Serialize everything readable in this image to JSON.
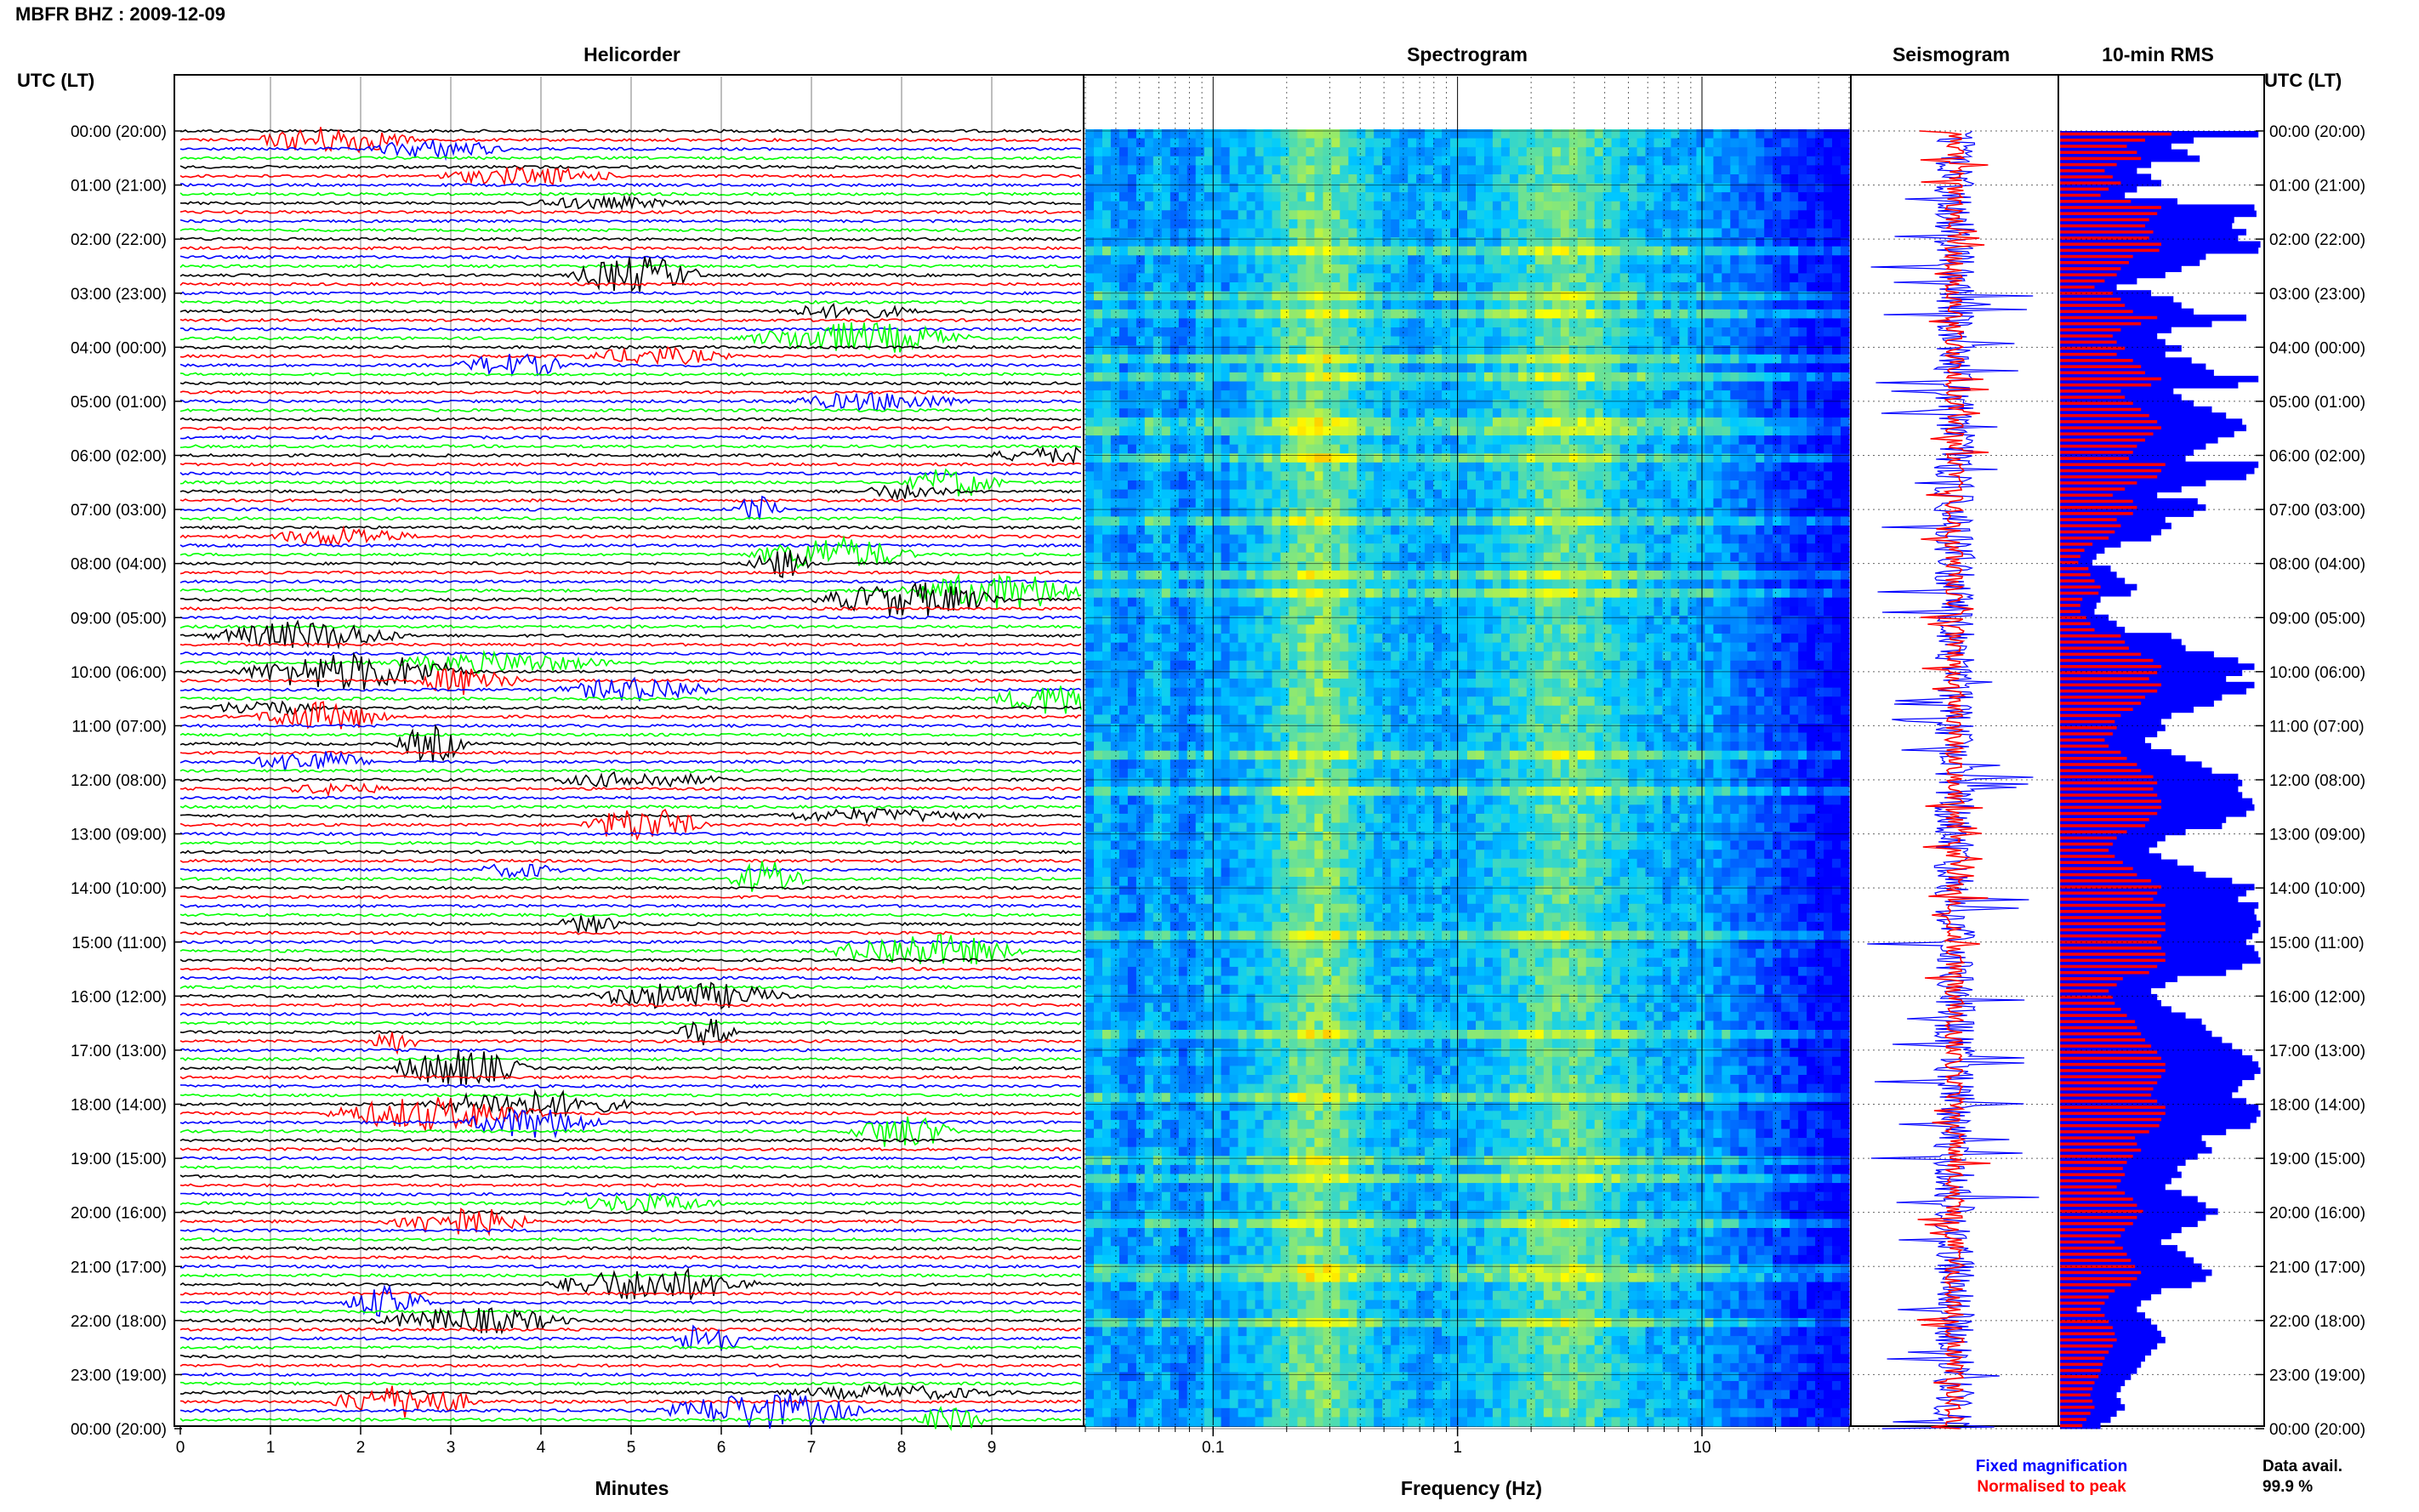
{
  "header": {
    "title": "MBFR BHZ : 2009-12-09"
  },
  "panels": {
    "helicorder": "Helicorder",
    "spectrogram": "Spectrogram",
    "seismogram": "Seismogram",
    "rms": "10-min RMS"
  },
  "axes": {
    "left_time_title": "UTC (LT)",
    "right_time_title": "UTC (LT)",
    "helicorder_xlabel": "Minutes",
    "spectrogram_xlabel": "Frequency (Hz)"
  },
  "legend": {
    "fixed": "Fixed magnification",
    "normalised": "Normalised to peak",
    "fixed_color": "#0000ff",
    "normalised_color": "#ff0000"
  },
  "availability": {
    "label": "Data avail.",
    "value": "99.9 %"
  },
  "chart_data": [
    {
      "type": "line",
      "name": "helicorder",
      "x_range_minutes": [
        0,
        10
      ],
      "x_ticks": [
        "0",
        "1",
        "2",
        "3",
        "4",
        "5",
        "6",
        "7",
        "8",
        "9"
      ],
      "trace_colors": [
        "#000000",
        "#ff0000",
        "#0000ff",
        "#00ff00"
      ],
      "traces_per_hour": 6,
      "y_time_labels": [
        "00:00 (20:00)",
        "01:00 (21:00)",
        "02:00 (22:00)",
        "03:00 (23:00)",
        "04:00 (00:00)",
        "05:00 (01:00)",
        "06:00 (02:00)",
        "07:00 (03:00)",
        "08:00 (04:00)",
        "09:00 (05:00)",
        "10:00 (06:00)",
        "11:00 (07:00)",
        "12:00 (08:00)",
        "13:00 (09:00)",
        "14:00 (10:00)",
        "15:00 (11:00)",
        "16:00 (12:00)",
        "17:00 (13:00)",
        "18:00 (14:00)",
        "19:00 (15:00)",
        "20:00 (16:00)",
        "21:00 (17:00)",
        "22:00 (18:00)",
        "23:00 (19:00)",
        "00:00 (20:00)"
      ]
    },
    {
      "type": "heatmap",
      "name": "spectrogram",
      "x_scale": "log",
      "x_range_hz": [
        0.03,
        40
      ],
      "x_ticks": [
        "0.1",
        "1",
        "10"
      ],
      "colors": [
        "#0000ff",
        "#00ccff",
        "#ffff00",
        "#ff0000"
      ]
    },
    {
      "type": "line",
      "name": "seismogram",
      "series_colors": [
        "#0000ff",
        "#ff0000"
      ]
    },
    {
      "type": "bar",
      "name": "rms",
      "orientation": "horizontal",
      "blue_levels": [
        0.98,
        0.66,
        0.55,
        0.63,
        0.69,
        0.45,
        0.38,
        0.45,
        0.5,
        0.38,
        0.32,
        0.58,
        0.96,
        0.97,
        0.86,
        0.85,
        0.92,
        0.88,
        0.99,
        0.98,
        0.72,
        0.69,
        0.6,
        0.52,
        0.38,
        0.28,
        0.45,
        0.56,
        0.6,
        0.66,
        0.92,
        0.75,
        0.55,
        0.48,
        0.52,
        0.6,
        0.52,
        0.65,
        0.72,
        0.76,
        0.98,
        0.88,
        0.56,
        0.6,
        0.66,
        0.75,
        0.82,
        0.9,
        0.92,
        0.86,
        0.78,
        0.72,
        0.66,
        0.62,
        0.98,
        0.96,
        0.92,
        0.72,
        0.6,
        0.48,
        0.68,
        0.72,
        0.66,
        0.52,
        0.55,
        0.5,
        0.45,
        0.3,
        0.22,
        0.18,
        0.16,
        0.25,
        0.28,
        0.32,
        0.38,
        0.35,
        0.2,
        0.18,
        0.17,
        0.24,
        0.28,
        0.32,
        0.55,
        0.6,
        0.62,
        0.76,
        0.88,
        0.96,
        0.9,
        0.82,
        0.96,
        0.92,
        0.8,
        0.76,
        0.66,
        0.55,
        0.5,
        0.52,
        0.48,
        0.42,
        0.45,
        0.55,
        0.62,
        0.7,
        0.75,
        0.88,
        0.9,
        0.88,
        0.9,
        0.95,
        0.96,
        0.92,
        0.82,
        0.8,
        0.62,
        0.52,
        0.48,
        0.44,
        0.5,
        0.58,
        0.66,
        0.72,
        0.85,
        0.96,
        0.92,
        0.88,
        0.98,
        0.96,
        0.97,
        0.99,
        0.98,
        0.95,
        0.92,
        0.96,
        0.98,
        0.99,
        0.9,
        0.82,
        0.58,
        0.52,
        0.45,
        0.48,
        0.5,
        0.55,
        0.62,
        0.7,
        0.72,
        0.75,
        0.8,
        0.85,
        0.9,
        0.95,
        0.98,
        0.99,
        0.96,
        0.9,
        0.88,
        0.85,
        0.92,
        0.98,
        0.99,
        0.97,
        0.94,
        0.82,
        0.7,
        0.72,
        0.75,
        0.68,
        0.62,
        0.58,
        0.6,
        0.55,
        0.52,
        0.6,
        0.68,
        0.72,
        0.78,
        0.72,
        0.68,
        0.6,
        0.55,
        0.5,
        0.58,
        0.62,
        0.66,
        0.7,
        0.75,
        0.72,
        0.65,
        0.5,
        0.45,
        0.4,
        0.38,
        0.42,
        0.45,
        0.48,
        0.5,
        0.52,
        0.48,
        0.45,
        0.42,
        0.4,
        0.38,
        0.35,
        0.32,
        0.3,
        0.28,
        0.3,
        0.32,
        0.28,
        0.25,
        0.2
      ],
      "red_levels": [
        0.55,
        0.42,
        0.33,
        0.38,
        0.4,
        0.28,
        0.22,
        0.26,
        0.3,
        0.24,
        0.2,
        0.35,
        0.5,
        0.48,
        0.44,
        0.42,
        0.46,
        0.44,
        0.5,
        0.49,
        0.36,
        0.34,
        0.3,
        0.28,
        0.22,
        0.17,
        0.26,
        0.3,
        0.32,
        0.36,
        0.48,
        0.4,
        0.3,
        0.26,
        0.28,
        0.32,
        0.28,
        0.36,
        0.4,
        0.42,
        0.5,
        0.45,
        0.3,
        0.32,
        0.36,
        0.4,
        0.44,
        0.48,
        0.5,
        0.46,
        0.42,
        0.38,
        0.36,
        0.34,
        0.52,
        0.5,
        0.48,
        0.38,
        0.32,
        0.26,
        0.36,
        0.38,
        0.36,
        0.28,
        0.3,
        0.27,
        0.24,
        0.16,
        0.12,
        0.1,
        0.09,
        0.14,
        0.15,
        0.17,
        0.2,
        0.19,
        0.11,
        0.1,
        0.1,
        0.13,
        0.15,
        0.17,
        0.3,
        0.32,
        0.34,
        0.4,
        0.46,
        0.5,
        0.48,
        0.44,
        0.5,
        0.48,
        0.42,
        0.4,
        0.36,
        0.3,
        0.27,
        0.28,
        0.26,
        0.22,
        0.24,
        0.3,
        0.33,
        0.38,
        0.4,
        0.46,
        0.48,
        0.46,
        0.48,
        0.5,
        0.5,
        0.48,
        0.44,
        0.42,
        0.33,
        0.28,
        0.26,
        0.24,
        0.27,
        0.31,
        0.36,
        0.38,
        0.45,
        0.5,
        0.48,
        0.46,
        0.52,
        0.5,
        0.5,
        0.52,
        0.52,
        0.5,
        0.48,
        0.5,
        0.52,
        0.52,
        0.48,
        0.44,
        0.31,
        0.28,
        0.24,
        0.26,
        0.27,
        0.3,
        0.33,
        0.37,
        0.38,
        0.4,
        0.42,
        0.45,
        0.48,
        0.5,
        0.52,
        0.52,
        0.5,
        0.48,
        0.46,
        0.45,
        0.48,
        0.52,
        0.52,
        0.5,
        0.49,
        0.44,
        0.37,
        0.38,
        0.4,
        0.36,
        0.33,
        0.31,
        0.32,
        0.3,
        0.28,
        0.32,
        0.36,
        0.38,
        0.41,
        0.38,
        0.36,
        0.32,
        0.3,
        0.27,
        0.31,
        0.33,
        0.35,
        0.37,
        0.4,
        0.38,
        0.35,
        0.27,
        0.24,
        0.22,
        0.2,
        0.22,
        0.24,
        0.26,
        0.27,
        0.28,
        0.26,
        0.24,
        0.22,
        0.21,
        0.2,
        0.19,
        0.17,
        0.16,
        0.15,
        0.16,
        0.17,
        0.15,
        0.13,
        0.11
      ]
    }
  ]
}
